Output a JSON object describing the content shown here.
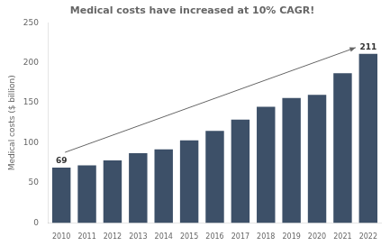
{
  "chart_data": {
    "type": "bar",
    "title": "Medical costs have increased at 10% CAGR!",
    "ylabel": "Medical costs ($ billion)",
    "categories": [
      "2010",
      "2011",
      "2012",
      "2013",
      "2014",
      "2015",
      "2016",
      "2017",
      "2018",
      "2019",
      "2020",
      "2021",
      "2022"
    ],
    "values": [
      69,
      72,
      78,
      87,
      92,
      103,
      115,
      129,
      145,
      156,
      160,
      187,
      211
    ],
    "color": "#3d5068",
    "ylim": [
      0,
      250
    ],
    "yticks": [
      0,
      50,
      100,
      150,
      200,
      250
    ],
    "grid": false,
    "annotations": [
      {
        "text": "69",
        "x": "2010",
        "y": 69
      },
      {
        "text": "211",
        "x": "2022",
        "y": 211
      }
    ]
  }
}
